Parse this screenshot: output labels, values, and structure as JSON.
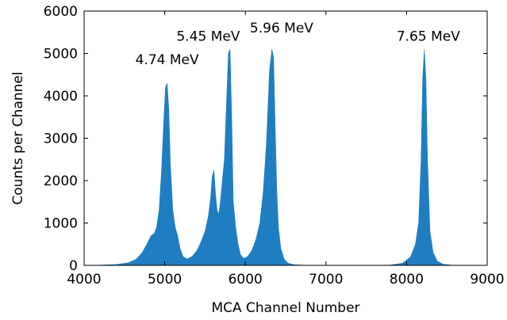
{
  "colors": {
    "fill": "#1f7ec2",
    "axis": "#000000",
    "background": "#ffffff"
  },
  "chart_data": {
    "type": "area",
    "title": "",
    "xlabel": "MCA Channel Number",
    "ylabel": "Counts per Channel",
    "xlim": [
      4000,
      9000
    ],
    "ylim": [
      0,
      6000
    ],
    "grid": false,
    "xticks": [
      4000,
      5000,
      6000,
      7000,
      8000,
      9000
    ],
    "yticks": [
      0,
      1000,
      2000,
      3000,
      4000,
      5000,
      6000
    ],
    "annotations": [
      {
        "text": "4.74 MeV",
        "x": 5030,
        "y": 4750
      },
      {
        "text": "5.45 MeV",
        "x": 5540,
        "y": 5300
      },
      {
        "text": "5.96 MeV",
        "x": 6450,
        "y": 5500
      },
      {
        "text": "7.65 MeV",
        "x": 8270,
        "y": 5300
      }
    ],
    "series": [
      {
        "x": [
          4000,
          4200,
          4400,
          4550,
          4650,
          4720,
          4780,
          4830,
          4870,
          4900,
          4930,
          4960,
          4990,
          5010,
          5030,
          5050,
          5070,
          5100,
          5130,
          5160,
          5190,
          5230,
          5280,
          5340,
          5400,
          5450,
          5500,
          5540,
          5570,
          5590,
          5610,
          5630,
          5650,
          5670,
          5690,
          5710,
          5740,
          5770,
          5790,
          5810,
          5830,
          5850,
          5880,
          5910,
          5940,
          5980,
          6030,
          6080,
          6130,
          6180,
          6220,
          6260,
          6300,
          6330,
          6350,
          6370,
          6390,
          6410,
          6440,
          6480,
          6530,
          6600,
          6700,
          6800,
          7000,
          7200,
          7400,
          7600,
          7800,
          7950,
          8050,
          8110,
          8150,
          8180,
          8200,
          8220,
          8240,
          8260,
          8290,
          8330,
          8380,
          8450,
          8550,
          8700,
          8850,
          9000
        ],
        "values": [
          0,
          5,
          20,
          60,
          150,
          300,
          500,
          700,
          750,
          900,
          1300,
          2200,
          3500,
          4200,
          4300,
          3700,
          2400,
          1300,
          900,
          700,
          400,
          200,
          150,
          210,
          350,
          550,
          800,
          1150,
          1600,
          2100,
          2250,
          1700,
          1300,
          1200,
          1500,
          1900,
          2500,
          4000,
          5000,
          5100,
          3600,
          1500,
          900,
          500,
          250,
          160,
          210,
          350,
          600,
          1000,
          1700,
          2800,
          4600,
          5100,
          4900,
          3300,
          1800,
          900,
          400,
          150,
          50,
          15,
          5,
          0,
          0,
          0,
          0,
          0,
          10,
          50,
          200,
          500,
          1000,
          2500,
          4400,
          5100,
          4400,
          2500,
          800,
          300,
          100,
          30,
          5,
          0,
          0,
          0
        ]
      }
    ]
  }
}
